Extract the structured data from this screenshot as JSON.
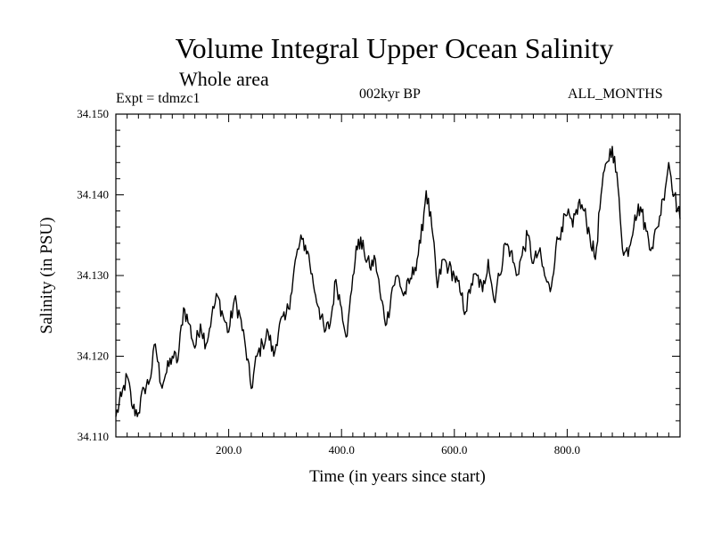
{
  "chart_data": {
    "type": "line",
    "title": "Volume Integral Upper Ocean Salinity",
    "subtitle": "Whole area",
    "experiment_label": "Expt = tdmzc1",
    "period_label": "002kyr BP",
    "months_label": "ALL_MONTHS",
    "xlabel": "Time (in years since start)",
    "ylabel": "Salinity (in PSU)",
    "xlim": [
      0,
      1000
    ],
    "ylim": [
      34.11,
      34.15
    ],
    "x_ticks": [
      200,
      400,
      600,
      800
    ],
    "x_tick_labels": [
      "200.0",
      "400.0",
      "600.0",
      "800.0"
    ],
    "y_ticks": [
      34.11,
      34.12,
      34.13,
      34.14,
      34.15
    ],
    "y_tick_labels": [
      "34.110",
      "34.120",
      "34.130",
      "34.140",
      "34.150"
    ],
    "grid": false,
    "series": [
      {
        "name": "Salinity",
        "color": "#000000",
        "x": [
          0,
          10,
          20,
          30,
          40,
          50,
          60,
          70,
          80,
          90,
          100,
          110,
          120,
          130,
          140,
          150,
          160,
          170,
          180,
          190,
          200,
          210,
          220,
          230,
          240,
          250,
          260,
          270,
          280,
          290,
          300,
          310,
          320,
          330,
          340,
          350,
          360,
          370,
          380,
          390,
          400,
          410,
          420,
          430,
          440,
          450,
          460,
          470,
          480,
          490,
          500,
          510,
          520,
          530,
          540,
          550,
          560,
          570,
          580,
          590,
          600,
          610,
          620,
          630,
          640,
          650,
          660,
          670,
          680,
          690,
          700,
          710,
          720,
          730,
          740,
          750,
          760,
          770,
          780,
          790,
          800,
          810,
          820,
          830,
          840,
          850,
          860,
          870,
          880,
          890,
          900,
          910,
          920,
          930,
          940,
          950,
          960,
          970,
          980,
          990,
          1000
        ],
        "values": [
          34.1125,
          34.115,
          34.1175,
          34.1135,
          34.113,
          34.116,
          34.117,
          34.1215,
          34.1165,
          34.118,
          34.12,
          34.1195,
          34.126,
          34.124,
          34.121,
          34.124,
          34.1215,
          34.125,
          34.1275,
          34.125,
          34.123,
          34.127,
          34.125,
          34.121,
          34.116,
          34.12,
          34.1215,
          34.123,
          34.12,
          34.124,
          34.1245,
          34.1275,
          34.1325,
          34.1345,
          34.133,
          34.129,
          34.126,
          34.123,
          34.124,
          34.1295,
          34.126,
          34.1225,
          34.13,
          34.1345,
          34.133,
          34.131,
          34.132,
          34.127,
          34.124,
          34.1285,
          34.13,
          34.1275,
          34.129,
          34.131,
          34.134,
          34.1405,
          34.136,
          34.1285,
          34.132,
          34.131,
          34.13,
          34.128,
          34.1255,
          34.129,
          34.13,
          34.128,
          34.132,
          34.127,
          34.13,
          34.134,
          34.133,
          34.13,
          34.1325,
          34.135,
          34.1315,
          34.133,
          34.13,
          34.128,
          34.1335,
          34.136,
          34.1375,
          34.136,
          34.139,
          34.138,
          34.135,
          34.132,
          34.14,
          34.144,
          34.146,
          34.141,
          34.1325,
          34.1335,
          34.1375,
          34.1385,
          34.1355,
          34.1335,
          34.136,
          34.1395,
          34.144,
          34.14,
          34.137
        ]
      }
    ]
  }
}
